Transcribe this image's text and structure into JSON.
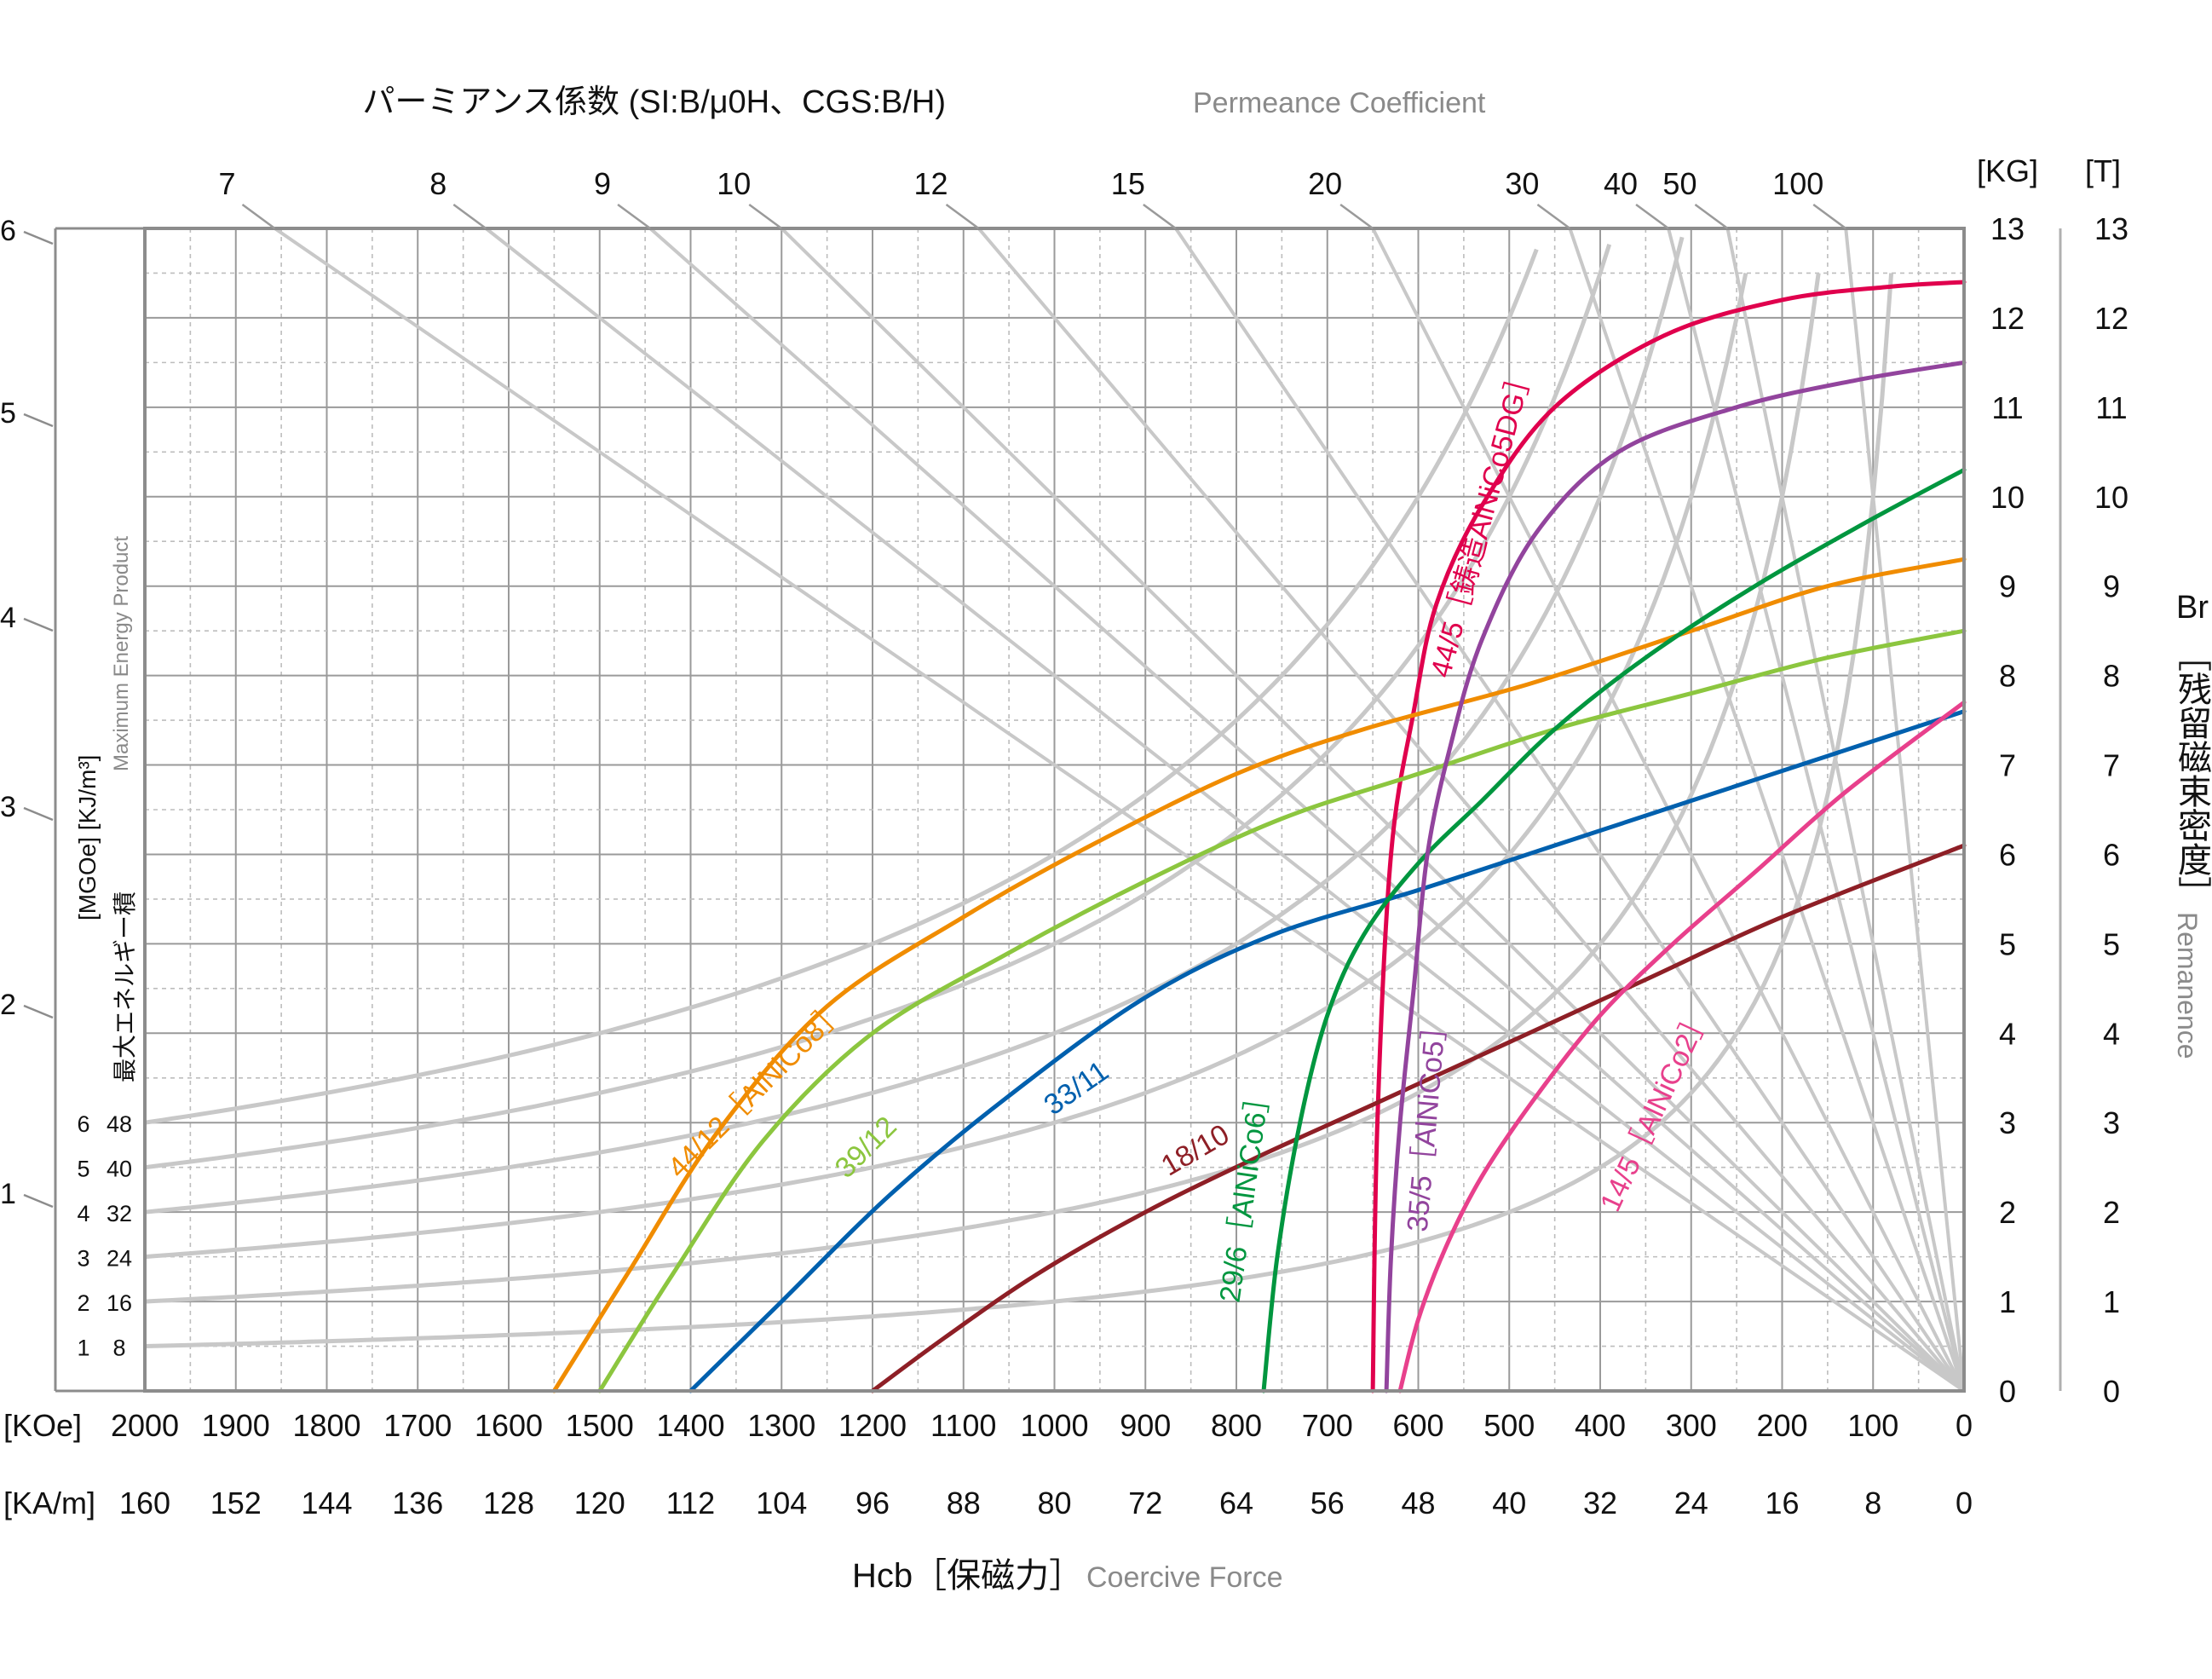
{
  "chart_data": {
    "type": "line",
    "title_jp": "パーミアンス係数 (SI:B/μ0H、CGS:B/H)",
    "title_en": "Permeance Coefficient",
    "xlabel_jp": "Hcb［保磁力］",
    "xlabel_en": "Coercive Force",
    "ylabel_right_jp_prefix": "Br",
    "ylabel_right_jp": "［残留磁束密度］",
    "ylabel_right_en": "Remanence",
    "ylabel_left_jp": "最大エネルギー積",
    "ylabel_left_units": "[MGOe] [KJ/m³]",
    "ylabel_left_en": "Maximum Energy Product",
    "x_unit_koe": "[KOe]",
    "x_unit_kam": "[KA/m]",
    "y_unit_kg": "[KG]",
    "y_unit_t": "[T]",
    "x_ticks_koe": [
      "2000",
      "1900",
      "1800",
      "1700",
      "1600",
      "1500",
      "1400",
      "1300",
      "1200",
      "1100",
      "1000",
      "900",
      "800",
      "700",
      "600",
      "500",
      "400",
      "300",
      "200",
      "100",
      "0"
    ],
    "x_ticks_kam": [
      "160",
      "152",
      "144",
      "136",
      "128",
      "120",
      "112",
      "104",
      "96",
      "88",
      "80",
      "72",
      "64",
      "56",
      "48",
      "40",
      "32",
      "24",
      "16",
      "8",
      "0"
    ],
    "y_ticks_kg": [
      "0",
      "1",
      "2",
      "3",
      "4",
      "5",
      "6",
      "7",
      "8",
      "9",
      "10",
      "11",
      "12",
      "13"
    ],
    "y_ticks_t": [
      "0",
      "1",
      "2",
      "3",
      "4",
      "5",
      "6",
      "7",
      "8",
      "9",
      "10",
      "11",
      "12",
      "13"
    ],
    "permeance_ticks": [
      "7",
      "8",
      "9",
      "10",
      "12",
      "15",
      "20",
      "30",
      "40",
      "50",
      "100"
    ],
    "energy_outer_ticks": [
      "1",
      "2",
      "3",
      "4",
      "5",
      "6"
    ],
    "energy_inner_ticks": [
      {
        "mgoe": "1",
        "kj": "8"
      },
      {
        "mgoe": "2",
        "kj": "16"
      },
      {
        "mgoe": "3",
        "kj": "24"
      },
      {
        "mgoe": "4",
        "kj": "32"
      },
      {
        "mgoe": "5",
        "kj": "40"
      },
      {
        "mgoe": "6",
        "kj": "48"
      }
    ],
    "xlim": [
      2000,
      0
    ],
    "ylim": [
      0,
      13
    ],
    "grid": true,
    "series": [
      {
        "name": "44/5［鋳造AlNiCo5DG］",
        "color": "#e0004d",
        "points": [
          [
            650,
            0
          ],
          [
            645,
            3
          ],
          [
            630,
            6
          ],
          [
            605,
            7.6
          ],
          [
            580,
            8.8
          ],
          [
            530,
            9.9
          ],
          [
            450,
            11
          ],
          [
            330,
            11.8
          ],
          [
            200,
            12.2
          ],
          [
            80,
            12.35
          ],
          [
            0,
            12.4
          ]
        ]
      },
      {
        "name": "44/12［AlNiCo8］",
        "color": "#f08c00",
        "points": [
          [
            1550,
            0
          ],
          [
            1470,
            1.3
          ],
          [
            1370,
            2.9
          ],
          [
            1250,
            4.3
          ],
          [
            1100,
            5.3
          ],
          [
            960,
            6.1
          ],
          [
            800,
            6.9
          ],
          [
            660,
            7.4
          ],
          [
            480,
            7.9
          ],
          [
            300,
            8.5
          ],
          [
            150,
            9.0
          ],
          [
            0,
            9.3
          ]
        ]
      },
      {
        "name": "39/12",
        "color": "#8cc63f",
        "points": [
          [
            1500,
            0
          ],
          [
            1420,
            1.3
          ],
          [
            1320,
            2.8
          ],
          [
            1200,
            4.0
          ],
          [
            1050,
            4.9
          ],
          [
            900,
            5.7
          ],
          [
            750,
            6.4
          ],
          [
            600,
            6.9
          ],
          [
            450,
            7.4
          ],
          [
            300,
            7.8
          ],
          [
            150,
            8.2
          ],
          [
            0,
            8.5
          ]
        ]
      },
      {
        "name": "33/11",
        "color": "#0060ae",
        "points": [
          [
            1400,
            0
          ],
          [
            1300,
            1.0
          ],
          [
            1180,
            2.2
          ],
          [
            1050,
            3.3
          ],
          [
            900,
            4.4
          ],
          [
            760,
            5.1
          ],
          [
            600,
            5.6
          ],
          [
            450,
            6.1
          ],
          [
            300,
            6.6
          ],
          [
            150,
            7.1
          ],
          [
            0,
            7.6
          ]
        ]
      },
      {
        "name": "18/10",
        "color": "#8e1f26",
        "points": [
          [
            1200,
            0
          ],
          [
            1120,
            0.6
          ],
          [
            1020,
            1.3
          ],
          [
            900,
            2.0
          ],
          [
            780,
            2.6
          ],
          [
            650,
            3.2
          ],
          [
            500,
            3.9
          ],
          [
            350,
            4.6
          ],
          [
            200,
            5.3
          ],
          [
            0,
            6.1
          ]
        ]
      },
      {
        "name": "29/6［AlNiCo6］",
        "color": "#00963f",
        "points": [
          [
            770,
            0
          ],
          [
            755,
            1.5
          ],
          [
            730,
            3.0
          ],
          [
            700,
            4.2
          ],
          [
            660,
            5.1
          ],
          [
            600,
            5.9
          ],
          [
            530,
            6.6
          ],
          [
            450,
            7.4
          ],
          [
            350,
            8.2
          ],
          [
            230,
            9.0
          ],
          [
            110,
            9.7
          ],
          [
            0,
            10.3
          ]
        ]
      },
      {
        "name": "35/5［AlNiCo5］",
        "color": "#92449d",
        "points": [
          [
            635,
            0
          ],
          [
            630,
            1.5
          ],
          [
            620,
            3.0
          ],
          [
            605,
            4.5
          ],
          [
            590,
            6.0
          ],
          [
            565,
            7.2
          ],
          [
            530,
            8.4
          ],
          [
            470,
            9.6
          ],
          [
            380,
            10.5
          ],
          [
            250,
            11.0
          ],
          [
            120,
            11.3
          ],
          [
            0,
            11.5
          ]
        ]
      },
      {
        "name": "14/5［AlNiCo2］",
        "color": "#e8408c",
        "points": [
          [
            620,
            0
          ],
          [
            600,
            0.8
          ],
          [
            570,
            1.6
          ],
          [
            530,
            2.4
          ],
          [
            470,
            3.3
          ],
          [
            400,
            4.2
          ],
          [
            320,
            5.0
          ],
          [
            230,
            5.8
          ],
          [
            130,
            6.7
          ],
          [
            0,
            7.7
          ]
        ]
      }
    ],
    "series_labels": [
      {
        "text": "44/5［鋳造AlNiCo5DG］",
        "x": 520,
        "y": 9.7,
        "angle": -75,
        "color": "#e0004d"
      },
      {
        "text": "44/12［AlNiCo8］",
        "x": 1320,
        "y": 3.3,
        "angle": -45,
        "color": "#f08c00"
      },
      {
        "text": "39/12",
        "x": 1200,
        "y": 2.65,
        "angle": -45,
        "color": "#8cc63f"
      },
      {
        "text": "33/11",
        "x": 970,
        "y": 3.3,
        "angle": -35,
        "color": "#0060ae"
      },
      {
        "text": "18/10",
        "x": 840,
        "y": 2.6,
        "angle": -30,
        "color": "#8e1f26"
      },
      {
        "text": "29/6［AlNiCo6］",
        "x": 780,
        "y": 2.2,
        "angle": -82,
        "color": "#00963f"
      },
      {
        "text": "35/5［AlNiCo5］",
        "x": 580,
        "y": 3.0,
        "angle": -85,
        "color": "#92449d"
      },
      {
        "text": "14/5［AlNiCo2］",
        "x": 330,
        "y": 3.1,
        "angle": -65,
        "color": "#e8408c"
      }
    ]
  }
}
